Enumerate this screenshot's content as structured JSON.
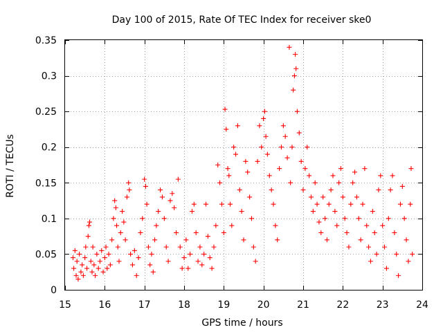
{
  "chart_data": {
    "type": "scatter",
    "title": "Day 100 of 2015, Rate Of TEC Index for receiver ske0",
    "xlabel": "GPS time / hours",
    "ylabel": "ROTI / TECUs",
    "xlim": [
      15,
      24
    ],
    "ylim": [
      0,
      0.35
    ],
    "x_ticks": [
      15,
      16,
      17,
      18,
      19,
      20,
      21,
      22,
      23,
      24
    ],
    "x_tick_labels": [
      "15",
      "16",
      "17",
      "18",
      "19",
      "20",
      "21",
      "22",
      "23",
      "24"
    ],
    "y_ticks": [
      0,
      0.05,
      0.1,
      0.15,
      0.2,
      0.25,
      0.3,
      0.35
    ],
    "y_tick_labels": [
      "0",
      "0.05",
      "0.1",
      "0.15",
      "0.2",
      "0.25",
      "0.3",
      "0.35"
    ],
    "grid": true,
    "marker": "plus",
    "color": "#ff0000",
    "series": [
      {
        "name": "ROTI",
        "points": [
          [
            15.2,
            0.045
          ],
          [
            15.22,
            0.03
          ],
          [
            15.25,
            0.055
          ],
          [
            15.28,
            0.02
          ],
          [
            15.3,
            0.04
          ],
          [
            15.33,
            0.015
          ],
          [
            15.36,
            0.05
          ],
          [
            15.4,
            0.025
          ],
          [
            15.43,
            0.035
          ],
          [
            15.46,
            0.02
          ],
          [
            15.5,
            0.045
          ],
          [
            15.52,
            0.06
          ],
          [
            15.55,
            0.03
          ],
          [
            15.58,
            0.075
          ],
          [
            15.6,
            0.09
          ],
          [
            15.62,
            0.095
          ],
          [
            15.65,
            0.04
          ],
          [
            15.68,
            0.025
          ],
          [
            15.7,
            0.06
          ],
          [
            15.73,
            0.035
          ],
          [
            15.76,
            0.02
          ],
          [
            15.8,
            0.05
          ],
          [
            15.84,
            0.03
          ],
          [
            15.88,
            0.04
          ],
          [
            15.92,
            0.055
          ],
          [
            15.96,
            0.025
          ],
          [
            16.0,
            0.045
          ],
          [
            16.03,
            0.06
          ],
          [
            16.06,
            0.03
          ],
          [
            16.1,
            0.05
          ],
          [
            16.14,
            0.035
          ],
          [
            16.18,
            0.07
          ],
          [
            16.22,
            0.1
          ],
          [
            16.25,
            0.125
          ],
          [
            16.28,
            0.115
          ],
          [
            16.3,
            0.09
          ],
          [
            16.33,
            0.06
          ],
          [
            16.36,
            0.04
          ],
          [
            16.4,
            0.08
          ],
          [
            16.44,
            0.11
          ],
          [
            16.48,
            0.095
          ],
          [
            16.52,
            0.07
          ],
          [
            16.56,
            0.13
          ],
          [
            16.6,
            0.15
          ],
          [
            16.62,
            0.14
          ],
          [
            16.65,
            0.05
          ],
          [
            16.7,
            0.035
          ],
          [
            16.75,
            0.055
          ],
          [
            16.8,
            0.02
          ],
          [
            16.85,
            0.045
          ],
          [
            16.9,
            0.08
          ],
          [
            16.95,
            0.1
          ],
          [
            17.0,
            0.155
          ],
          [
            17.03,
            0.145
          ],
          [
            17.06,
            0.12
          ],
          [
            17.1,
            0.06
          ],
          [
            17.14,
            0.035
          ],
          [
            17.18,
            0.05
          ],
          [
            17.22,
            0.025
          ],
          [
            17.26,
            0.07
          ],
          [
            17.3,
            0.09
          ],
          [
            17.35,
            0.11
          ],
          [
            17.4,
            0.14
          ],
          [
            17.45,
            0.13
          ],
          [
            17.5,
            0.1
          ],
          [
            17.55,
            0.06
          ],
          [
            17.6,
            0.04
          ],
          [
            17.65,
            0.125
          ],
          [
            17.7,
            0.135
          ],
          [
            17.75,
            0.115
          ],
          [
            17.8,
            0.08
          ],
          [
            17.85,
            0.155
          ],
          [
            17.9,
            0.06
          ],
          [
            17.95,
            0.03
          ],
          [
            18.0,
            0.045
          ],
          [
            18.05,
            0.07
          ],
          [
            18.1,
            0.03
          ],
          [
            18.15,
            0.05
          ],
          [
            18.2,
            0.11
          ],
          [
            18.25,
            0.12
          ],
          [
            18.3,
            0.08
          ],
          [
            18.35,
            0.04
          ],
          [
            18.4,
            0.06
          ],
          [
            18.45,
            0.035
          ],
          [
            18.5,
            0.05
          ],
          [
            18.55,
            0.12
          ],
          [
            18.6,
            0.075
          ],
          [
            18.65,
            0.045
          ],
          [
            18.7,
            0.03
          ],
          [
            18.75,
            0.06
          ],
          [
            18.8,
            0.09
          ],
          [
            18.85,
            0.175
          ],
          [
            18.9,
            0.15
          ],
          [
            18.95,
            0.12
          ],
          [
            19.0,
            0.08
          ],
          [
            19.03,
            0.253
          ],
          [
            19.06,
            0.225
          ],
          [
            19.1,
            0.17
          ],
          [
            19.13,
            0.16
          ],
          [
            19.16,
            0.12
          ],
          [
            19.2,
            0.09
          ],
          [
            19.25,
            0.2
          ],
          [
            19.3,
            0.19
          ],
          [
            19.35,
            0.23
          ],
          [
            19.4,
            0.14
          ],
          [
            19.45,
            0.11
          ],
          [
            19.5,
            0.07
          ],
          [
            19.55,
            0.18
          ],
          [
            19.6,
            0.165
          ],
          [
            19.65,
            0.13
          ],
          [
            19.7,
            0.1
          ],
          [
            19.75,
            0.06
          ],
          [
            19.8,
            0.04
          ],
          [
            19.85,
            0.18
          ],
          [
            19.9,
            0.23
          ],
          [
            19.95,
            0.2
          ],
          [
            20.0,
            0.24
          ],
          [
            20.03,
            0.25
          ],
          [
            20.06,
            0.215
          ],
          [
            20.1,
            0.19
          ],
          [
            20.15,
            0.16
          ],
          [
            20.2,
            0.14
          ],
          [
            20.25,
            0.12
          ],
          [
            20.3,
            0.09
          ],
          [
            20.35,
            0.07
          ],
          [
            20.4,
            0.17
          ],
          [
            20.45,
            0.2
          ],
          [
            20.5,
            0.23
          ],
          [
            20.55,
            0.215
          ],
          [
            20.6,
            0.185
          ],
          [
            20.65,
            0.34
          ],
          [
            20.68,
            0.15
          ],
          [
            20.72,
            0.2
          ],
          [
            20.75,
            0.28
          ],
          [
            20.78,
            0.3
          ],
          [
            20.8,
            0.33
          ],
          [
            20.82,
            0.31
          ],
          [
            20.85,
            0.25
          ],
          [
            20.9,
            0.22
          ],
          [
            20.95,
            0.18
          ],
          [
            21.0,
            0.14
          ],
          [
            21.05,
            0.17
          ],
          [
            21.1,
            0.2
          ],
          [
            21.15,
            0.16
          ],
          [
            21.2,
            0.13
          ],
          [
            21.25,
            0.11
          ],
          [
            21.3,
            0.15
          ],
          [
            21.35,
            0.12
          ],
          [
            21.4,
            0.095
          ],
          [
            21.45,
            0.08
          ],
          [
            21.5,
            0.13
          ],
          [
            21.55,
            0.1
          ],
          [
            21.6,
            0.07
          ],
          [
            21.65,
            0.12
          ],
          [
            21.7,
            0.14
          ],
          [
            21.75,
            0.16
          ],
          [
            21.8,
            0.11
          ],
          [
            21.85,
            0.09
          ],
          [
            21.9,
            0.15
          ],
          [
            21.95,
            0.17
          ],
          [
            22.0,
            0.13
          ],
          [
            22.05,
            0.1
          ],
          [
            22.1,
            0.08
          ],
          [
            22.15,
            0.06
          ],
          [
            22.2,
            0.12
          ],
          [
            22.25,
            0.15
          ],
          [
            22.3,
            0.165
          ],
          [
            22.35,
            0.13
          ],
          [
            22.4,
            0.1
          ],
          [
            22.45,
            0.07
          ],
          [
            22.5,
            0.12
          ],
          [
            22.55,
            0.17
          ],
          [
            22.6,
            0.09
          ],
          [
            22.65,
            0.06
          ],
          [
            22.7,
            0.04
          ],
          [
            22.75,
            0.11
          ],
          [
            22.8,
            0.08
          ],
          [
            22.85,
            0.05
          ],
          [
            22.9,
            0.14
          ],
          [
            22.95,
            0.16
          ],
          [
            23.0,
            0.09
          ],
          [
            23.05,
            0.06
          ],
          [
            23.1,
            0.03
          ],
          [
            23.15,
            0.1
          ],
          [
            23.2,
            0.14
          ],
          [
            23.25,
            0.16
          ],
          [
            23.3,
            0.08
          ],
          [
            23.35,
            0.05
          ],
          [
            23.4,
            0.02
          ],
          [
            23.45,
            0.12
          ],
          [
            23.5,
            0.145
          ],
          [
            23.55,
            0.1
          ],
          [
            23.6,
            0.07
          ],
          [
            23.65,
            0.04
          ],
          [
            23.7,
            0.12
          ],
          [
            23.72,
            0.17
          ],
          [
            23.75,
            0.05
          ]
        ]
      }
    ]
  }
}
